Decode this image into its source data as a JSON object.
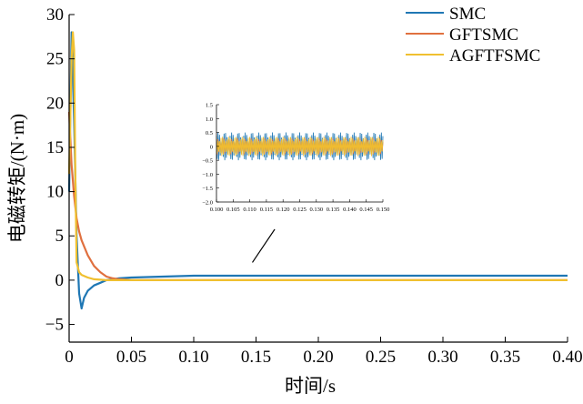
{
  "chart_data": {
    "type": "line",
    "title": "",
    "xlabel": "时间/s",
    "ylabel": "电磁转矩/(N·m)",
    "xlim": [
      0,
      0.4
    ],
    "ylim": [
      -7,
      30
    ],
    "x_ticks": [
      0,
      0.05,
      0.1,
      0.15,
      0.2,
      0.25,
      0.3,
      0.35,
      0.4
    ],
    "x_tick_labels": [
      "0",
      "0.05",
      "0.10",
      "0.15",
      "0.20",
      "0.25",
      "0.30",
      "0.35",
      "0.40"
    ],
    "y_ticks": [
      -5,
      0,
      5,
      10,
      15,
      20,
      25,
      30
    ],
    "y_tick_labels": [
      "−5",
      "0",
      "5",
      "10",
      "15",
      "20",
      "25",
      "30"
    ],
    "legend_position": "top-right",
    "colors": {
      "SMC": "#1f77b4",
      "GFTSMC": "#e0703f",
      "AGFTFSMC": "#f0c030"
    },
    "series": [
      {
        "name": "SMC",
        "x": [
          0,
          0.002,
          0.004,
          0.006,
          0.008,
          0.01,
          0.012,
          0.015,
          0.02,
          0.025,
          0.03,
          0.04,
          0.05,
          0.1,
          0.2,
          0.3,
          0.4
        ],
        "y": [
          10,
          28,
          18,
          5,
          -1.5,
          -3.2,
          -2.0,
          -1.2,
          -0.6,
          -0.3,
          0,
          0.2,
          0.3,
          0.5,
          0.5,
          0.5,
          0.5
        ]
      },
      {
        "name": "GFTSMC",
        "x": [
          0,
          0.002,
          0.004,
          0.006,
          0.008,
          0.01,
          0.015,
          0.02,
          0.025,
          0.03,
          0.035,
          0.04,
          0.05,
          0.1,
          0.2,
          0.3,
          0.4
        ],
        "y": [
          19,
          13,
          9.5,
          7,
          5.5,
          4.5,
          2.8,
          1.6,
          0.9,
          0.4,
          0.2,
          0.1,
          0,
          0,
          0,
          0,
          0
        ]
      },
      {
        "name": "AGFTFSMC",
        "x": [
          0,
          0.002,
          0.003,
          0.004,
          0.005,
          0.006,
          0.008,
          0.01,
          0.015,
          0.02,
          0.03,
          0.05,
          0.1,
          0.2,
          0.3,
          0.4
        ],
        "y": [
          12,
          25,
          28,
          26,
          12,
          2,
          0.9,
          0.6,
          0.3,
          0.1,
          0,
          0,
          0,
          0,
          0,
          0
        ]
      }
    ],
    "inset": {
      "xlim": [
        0.1,
        0.15
      ],
      "ylim": [
        -2.0,
        1.5
      ],
      "x_ticks": [
        0.1,
        0.105,
        0.11,
        0.115,
        0.12,
        0.125,
        0.13,
        0.135,
        0.14,
        0.145,
        0.15
      ],
      "x_tick_labels": [
        "0.100",
        "0.105",
        "0.110",
        "0.115",
        "0.120",
        "0.125",
        "0.130",
        "0.135",
        "0.140",
        "0.145",
        "0.150"
      ],
      "y_ticks": [
        1.5,
        1.0,
        0.5,
        0,
        -0.5,
        -1.0,
        -1.5,
        -2.0
      ],
      "y_tick_labels": [
        "1.5",
        "1.0",
        "0.5",
        "0",
        "−0.5",
        "−1.0",
        "−1.5",
        "−2.0"
      ],
      "series": [
        {
          "name": "SMC",
          "center": 0.0,
          "amplitude": 0.5
        },
        {
          "name": "GFTSMC",
          "center": 0.0,
          "amplitude": 0.3
        },
        {
          "name": "AGFTFSMC",
          "center": 0.0,
          "amplitude": 0.35
        }
      ]
    }
  }
}
